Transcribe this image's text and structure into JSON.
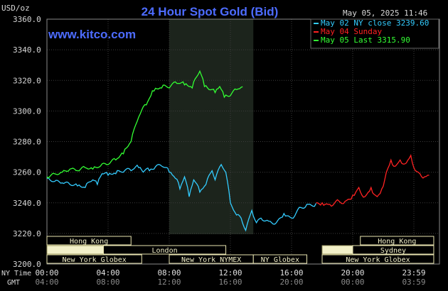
{
  "chart_data": {
    "type": "line",
    "title": "24 Hour Spot Gold (Bid)",
    "unit_label": "USD/oz",
    "timestamp": "May 05, 2025 11:46",
    "watermark": "www.kitco.com",
    "ylim": [
      3200,
      3360
    ],
    "y_ticks": [
      "3360.0",
      "3340.0",
      "3320.0",
      "3300.0",
      "3280.0",
      "3260.0",
      "3240.0",
      "3220.0",
      "3200.0"
    ],
    "x_axis_label_ny": "NY Time",
    "x_axis_label_gmt": "GMT",
    "x_ticks_ny": [
      "00:00",
      "04:00",
      "08:00",
      "12:00",
      "16:00",
      "20:00",
      "23:59"
    ],
    "x_ticks_gmt": [
      "04:00",
      "08:00",
      "12:00",
      "16:00",
      "20:00",
      "00:00",
      "03:59"
    ],
    "legend": [
      {
        "text": "May 02 NY close 3239.60",
        "color": "#33ccff"
      },
      {
        "text": "May 04 Sunday",
        "color": "#ff2222"
      },
      {
        "text": "May 05 Last 3315.90",
        "color": "#33ff33"
      }
    ],
    "series": [
      {
        "name": "May 02 NY close 3239.60",
        "color": "#33ccff",
        "points": [
          [
            0,
            3256
          ],
          [
            0.5,
            3254
          ],
          [
            1,
            3253
          ],
          [
            1.5,
            3252
          ],
          [
            2,
            3251
          ],
          [
            2.5,
            3250
          ],
          [
            3,
            3255
          ],
          [
            3.3,
            3252
          ],
          [
            3.6,
            3259
          ],
          [
            4,
            3258
          ],
          [
            4.5,
            3259
          ],
          [
            5,
            3260
          ],
          [
            5.5,
            3261
          ],
          [
            6,
            3263
          ],
          [
            6.3,
            3260
          ],
          [
            6.7,
            3261
          ],
          [
            7,
            3262
          ],
          [
            7.5,
            3264
          ],
          [
            8,
            3260
          ],
          [
            8.4,
            3256
          ],
          [
            8.7,
            3249
          ],
          [
            9,
            3257
          ],
          [
            9.3,
            3244
          ],
          [
            9.6,
            3255
          ],
          [
            10,
            3247
          ],
          [
            10.4,
            3252
          ],
          [
            10.8,
            3261
          ],
          [
            11,
            3255
          ],
          [
            11.4,
            3265
          ],
          [
            11.7,
            3260
          ],
          [
            12,
            3240
          ],
          [
            12.4,
            3232
          ],
          [
            12.7,
            3230
          ],
          [
            13,
            3222
          ],
          [
            13.4,
            3235
          ],
          [
            13.7,
            3227
          ],
          [
            14,
            3230
          ],
          [
            14.5,
            3228
          ],
          [
            15,
            3227
          ],
          [
            15.5,
            3233
          ],
          [
            16,
            3230
          ],
          [
            16.5,
            3237
          ],
          [
            17,
            3239
          ],
          [
            17.6,
            3239.6
          ]
        ]
      },
      {
        "name": "May 04 Sunday",
        "color": "#ff2222",
        "points": [
          [
            17.6,
            3240
          ],
          [
            18,
            3240
          ],
          [
            18.5,
            3239
          ],
          [
            19,
            3242
          ],
          [
            19.5,
            3241
          ],
          [
            20,
            3245
          ],
          [
            20.4,
            3250
          ],
          [
            20.8,
            3244
          ],
          [
            21.2,
            3250
          ],
          [
            21.6,
            3244
          ],
          [
            21.9,
            3249
          ],
          [
            22.2,
            3260
          ],
          [
            22.5,
            3268
          ],
          [
            22.8,
            3264
          ],
          [
            23.1,
            3268
          ],
          [
            23.5,
            3266
          ],
          [
            23.8,
            3271
          ],
          [
            24.1,
            3261
          ],
          [
            24.4,
            3259
          ],
          [
            24.7,
            3257
          ],
          [
            25,
            3258
          ]
        ]
      },
      {
        "name": "May 05 Last 3315.90",
        "color": "#33ff33",
        "points": [
          [
            0,
            3257
          ],
          [
            0.5,
            3259
          ],
          [
            1,
            3260
          ],
          [
            1.5,
            3262
          ],
          [
            2,
            3261
          ],
          [
            2.5,
            3263
          ],
          [
            3,
            3262
          ],
          [
            3.5,
            3264
          ],
          [
            4,
            3265
          ],
          [
            4.5,
            3268
          ],
          [
            5,
            3272
          ],
          [
            5.5,
            3280
          ],
          [
            6,
            3296
          ],
          [
            6.5,
            3304
          ],
          [
            6.8,
            3310
          ],
          [
            7,
            3313
          ],
          [
            7.5,
            3315
          ],
          [
            8,
            3315
          ],
          [
            8.5,
            3318
          ],
          [
            9,
            3317
          ],
          [
            9.5,
            3315
          ],
          [
            10,
            3326
          ],
          [
            10.3,
            3316
          ],
          [
            10.6,
            3314
          ],
          [
            11,
            3312
          ],
          [
            11.3,
            3316
          ],
          [
            11.6,
            3309
          ],
          [
            12,
            3310
          ],
          [
            12.4,
            3314
          ],
          [
            12.8,
            3315.9
          ]
        ]
      }
    ],
    "sessions": [
      {
        "label": "Hong Kong",
        "row": 0,
        "start": -0.5,
        "end": 5.5
      },
      {
        "label": "London",
        "row": 1,
        "start": 3.7,
        "end": 11.7
      },
      {
        "label": "New York Globex",
        "row": 2,
        "start": -0.5,
        "end": 6.2
      },
      {
        "label": "New York NYMEX",
        "row": 2,
        "start": 8.0,
        "end": 13.5
      },
      {
        "label": "NY Globex",
        "row": 2,
        "start": 13.5,
        "end": 17.0
      },
      {
        "label": "Hong Kong",
        "row": 0,
        "start": 20.5,
        "end": 25.3
      },
      {
        "label": "Sydney",
        "row": 1,
        "start": 20.0,
        "end": 25.3
      },
      {
        "label": "New York Globex",
        "row": 2,
        "start": 18.0,
        "end": 25.3
      }
    ],
    "session_blocks": [
      {
        "row": 1,
        "start": -0.5,
        "end": 3.7
      },
      {
        "row": 1,
        "start": 18.0,
        "end": 20.0
      }
    ],
    "highlight_window": [
      8.0,
      13.5
    ],
    "grid": true,
    "legend_position": "top-right"
  }
}
